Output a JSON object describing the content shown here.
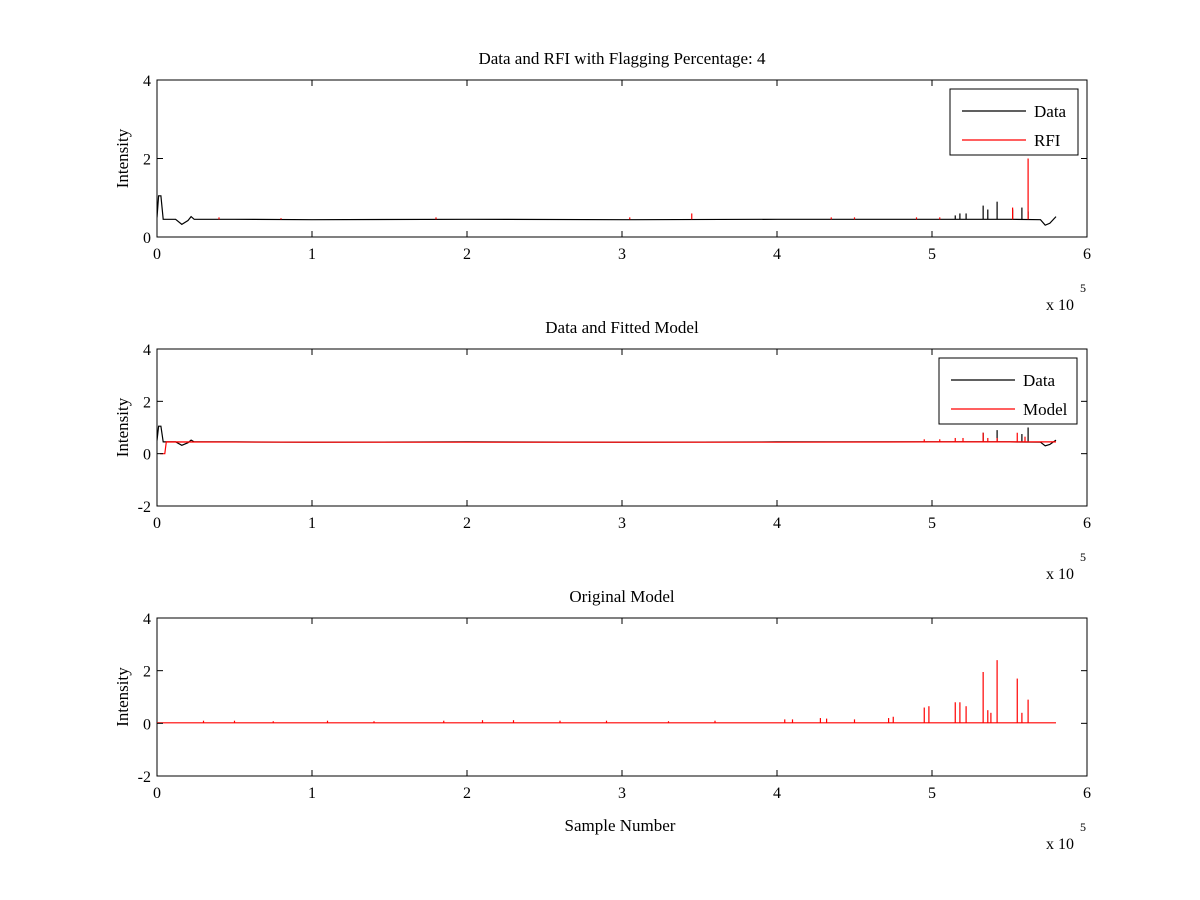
{
  "figure": {
    "background": "#ffffff"
  },
  "colors": {
    "data": "#000000",
    "rfi": "#ff0000",
    "model": "#ff0000",
    "axes": "#000000"
  },
  "chart_data": [
    {
      "type": "line",
      "title": "Data and RFI with Flagging Percentage: 4",
      "xlabel": "",
      "ylabel": "Intensity",
      "xlim": [
        0,
        6
      ],
      "ylim": [
        0,
        4
      ],
      "xticks": [
        "0",
        "1",
        "2",
        "3",
        "4",
        "5",
        "6"
      ],
      "yticks": [
        "0",
        "2",
        "4"
      ],
      "x_multiplier": {
        "base": "x 10",
        "exponent": "5"
      },
      "legend": {
        "placement": "top-right",
        "entries": [
          "Data",
          "RFI"
        ]
      },
      "series": [
        {
          "name": "Data",
          "color": "#000000",
          "kind": "baseline",
          "x": [
            0,
            0.01,
            0.025,
            0.04,
            0.08,
            0.12,
            0.16,
            0.2,
            0.22,
            0.24,
            0.5,
            1.0,
            2.0,
            3.0,
            4.0,
            5.0,
            5.5,
            5.7,
            5.73,
            5.76,
            5.8
          ],
          "y": [
            0.5,
            1.05,
            1.05,
            0.45,
            0.45,
            0.45,
            0.32,
            0.42,
            0.52,
            0.45,
            0.45,
            0.44,
            0.45,
            0.44,
            0.45,
            0.45,
            0.45,
            0.44,
            0.3,
            0.35,
            0.52
          ],
          "spikes": [
            [
              5.15,
              0.55
            ],
            [
              5.18,
              0.6
            ],
            [
              5.22,
              0.6
            ],
            [
              5.33,
              0.8
            ],
            [
              5.36,
              0.7
            ],
            [
              5.42,
              0.9
            ],
            [
              5.52,
              0.7
            ],
            [
              5.58,
              0.75
            ],
            [
              5.62,
              0.65
            ]
          ]
        },
        {
          "name": "RFI",
          "color": "#ff0000",
          "kind": "spikes",
          "spikes": [
            [
              0.4,
              0.5
            ],
            [
              0.8,
              0.48
            ],
            [
              1.8,
              0.5
            ],
            [
              3.05,
              0.5
            ],
            [
              3.45,
              0.6
            ],
            [
              4.35,
              0.5
            ],
            [
              4.5,
              0.5
            ],
            [
              4.9,
              0.5
            ],
            [
              5.05,
              0.5
            ],
            [
              5.52,
              0.75
            ],
            [
              5.62,
              2.0
            ]
          ]
        }
      ]
    },
    {
      "type": "line",
      "title": "Data and Fitted Model",
      "xlabel": "",
      "ylabel": "Intensity",
      "xlim": [
        0,
        6
      ],
      "ylim": [
        -2,
        4
      ],
      "xticks": [
        "0",
        "1",
        "2",
        "3",
        "4",
        "5",
        "6"
      ],
      "yticks": [
        "-2",
        "0",
        "2",
        "4"
      ],
      "x_multiplier": {
        "base": "x 10",
        "exponent": "5"
      },
      "legend": {
        "placement": "top-right",
        "entries": [
          "Data",
          "Model"
        ]
      },
      "series": [
        {
          "name": "Data",
          "color": "#000000",
          "kind": "baseline",
          "x": [
            0,
            0.01,
            0.025,
            0.04,
            0.08,
            0.12,
            0.16,
            0.2,
            0.22,
            0.24,
            0.5,
            1.0,
            2.0,
            3.0,
            4.0,
            5.0,
            5.5,
            5.7,
            5.73,
            5.76,
            5.8
          ],
          "y": [
            0.5,
            1.05,
            1.05,
            0.45,
            0.45,
            0.45,
            0.32,
            0.42,
            0.52,
            0.45,
            0.45,
            0.44,
            0.45,
            0.44,
            0.45,
            0.45,
            0.45,
            0.44,
            0.3,
            0.35,
            0.52
          ],
          "spikes": [
            [
              5.33,
              0.8
            ],
            [
              5.42,
              0.9
            ],
            [
              5.58,
              0.75
            ],
            [
              5.62,
              1.0
            ]
          ]
        },
        {
          "name": "Model",
          "color": "#ff0000",
          "kind": "baseline",
          "x": [
            0.02,
            0.05,
            0.06,
            1.0,
            2.0,
            3.0,
            4.0,
            5.0,
            5.8
          ],
          "y": [
            0.0,
            0.0,
            0.45,
            0.44,
            0.44,
            0.44,
            0.44,
            0.45,
            0.45
          ],
          "spikes": [
            [
              4.95,
              0.55
            ],
            [
              5.05,
              0.55
            ],
            [
              5.15,
              0.6
            ],
            [
              5.2,
              0.6
            ],
            [
              5.33,
              0.8
            ],
            [
              5.36,
              0.6
            ],
            [
              5.42,
              0.6
            ],
            [
              5.55,
              0.8
            ],
            [
              5.6,
              0.65
            ]
          ]
        }
      ]
    },
    {
      "type": "line",
      "title": "Original Model",
      "xlabel": "Sample Number",
      "ylabel": "Intensity",
      "xlim": [
        0,
        6
      ],
      "ylim": [
        -2,
        4
      ],
      "xticks": [
        "0",
        "1",
        "2",
        "3",
        "4",
        "5",
        "6"
      ],
      "yticks": [
        "-2",
        "0",
        "2",
        "4"
      ],
      "x_multiplier": {
        "base": "x 10",
        "exponent": "5"
      },
      "legend": null,
      "series": [
        {
          "color": "#ff0000",
          "kind": "baseline",
          "x": [
            0,
            5.8
          ],
          "y": [
            0.02,
            0.02
          ],
          "spikes": [
            [
              0.3,
              0.1
            ],
            [
              0.5,
              0.1
            ],
            [
              0.75,
              0.08
            ],
            [
              1.1,
              0.1
            ],
            [
              1.4,
              0.08
            ],
            [
              1.85,
              0.1
            ],
            [
              2.1,
              0.12
            ],
            [
              2.3,
              0.12
            ],
            [
              2.6,
              0.1
            ],
            [
              2.9,
              0.1
            ],
            [
              3.3,
              0.08
            ],
            [
              3.6,
              0.1
            ],
            [
              4.05,
              0.15
            ],
            [
              4.1,
              0.15
            ],
            [
              4.28,
              0.2
            ],
            [
              4.32,
              0.18
            ],
            [
              4.5,
              0.15
            ],
            [
              4.72,
              0.2
            ],
            [
              4.75,
              0.25
            ],
            [
              4.95,
              0.6
            ],
            [
              4.98,
              0.65
            ],
            [
              5.15,
              0.8
            ],
            [
              5.18,
              0.8
            ],
            [
              5.22,
              0.65
            ],
            [
              5.33,
              1.95
            ],
            [
              5.36,
              0.5
            ],
            [
              5.38,
              0.4
            ],
            [
              5.42,
              2.4
            ],
            [
              5.55,
              1.7
            ],
            [
              5.58,
              0.4
            ],
            [
              5.62,
              0.9
            ]
          ]
        }
      ]
    }
  ]
}
